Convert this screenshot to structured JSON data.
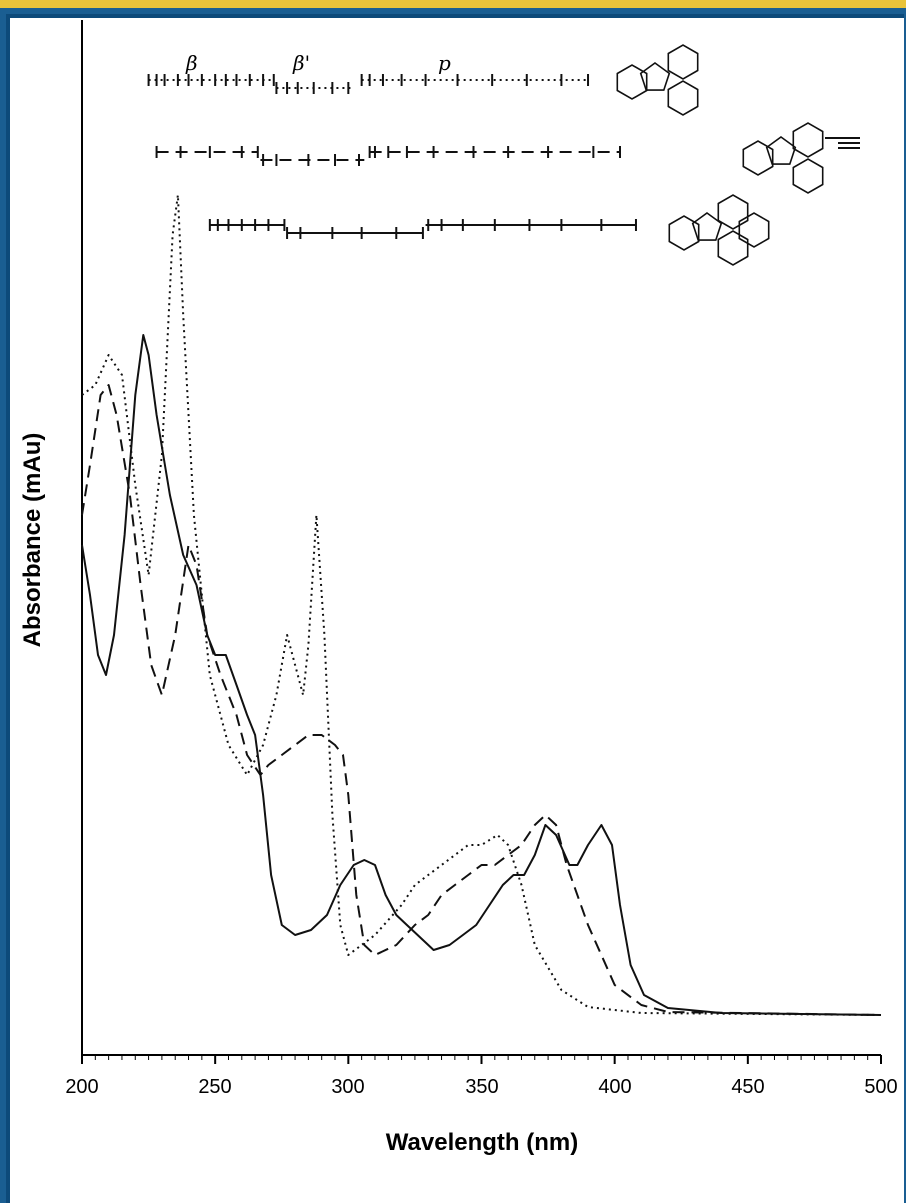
{
  "chart_data": {
    "type": "line",
    "title": "",
    "xlabel": "Wavelength (nm)",
    "ylabel": "Absorbance (mAu)",
    "xlim": [
      200,
      500
    ],
    "x_ticks": [
      "200",
      "250",
      "300",
      "350",
      "400",
      "450",
      "500"
    ],
    "band_labels": [
      "β",
      "β'",
      "p"
    ],
    "series": [
      {
        "style": "dotted",
        "points": [
          [
            200,
            0.62
          ],
          [
            205,
            0.63
          ],
          [
            210,
            0.66
          ],
          [
            215,
            0.64
          ],
          [
            220,
            0.53
          ],
          [
            225,
            0.44
          ],
          [
            230,
            0.56
          ],
          [
            234,
            0.78
          ],
          [
            236,
            0.82
          ],
          [
            238,
            0.7
          ],
          [
            242,
            0.5
          ],
          [
            248,
            0.34
          ],
          [
            255,
            0.27
          ],
          [
            262,
            0.24
          ],
          [
            268,
            0.27
          ],
          [
            273,
            0.32
          ],
          [
            277,
            0.38
          ],
          [
            280,
            0.35
          ],
          [
            283,
            0.32
          ],
          [
            285,
            0.37
          ],
          [
            288,
            0.5
          ],
          [
            291,
            0.38
          ],
          [
            294,
            0.2
          ],
          [
            297,
            0.09
          ],
          [
            300,
            0.06
          ],
          [
            305,
            0.07
          ],
          [
            310,
            0.08
          ],
          [
            320,
            0.11
          ],
          [
            325,
            0.13
          ],
          [
            330,
            0.14
          ],
          [
            335,
            0.15
          ],
          [
            340,
            0.16
          ],
          [
            345,
            0.17
          ],
          [
            350,
            0.17
          ],
          [
            356,
            0.18
          ],
          [
            360,
            0.17
          ],
          [
            365,
            0.13
          ],
          [
            370,
            0.07
          ],
          [
            380,
            0.025
          ],
          [
            390,
            0.008
          ],
          [
            410,
            0.002
          ],
          [
            500,
            0.0
          ]
        ]
      },
      {
        "style": "dashed",
        "points": [
          [
            200,
            0.5
          ],
          [
            203,
            0.55
          ],
          [
            207,
            0.62
          ],
          [
            210,
            0.63
          ],
          [
            213,
            0.6
          ],
          [
            218,
            0.52
          ],
          [
            222,
            0.43
          ],
          [
            226,
            0.35
          ],
          [
            230,
            0.32
          ],
          [
            235,
            0.38
          ],
          [
            240,
            0.47
          ],
          [
            243,
            0.45
          ],
          [
            247,
            0.38
          ],
          [
            252,
            0.34
          ],
          [
            258,
            0.3
          ],
          [
            262,
            0.26
          ],
          [
            267,
            0.24
          ],
          [
            270,
            0.25
          ],
          [
            275,
            0.26
          ],
          [
            280,
            0.27
          ],
          [
            285,
            0.28
          ],
          [
            290,
            0.28
          ],
          [
            295,
            0.27
          ],
          [
            298,
            0.26
          ],
          [
            300,
            0.22
          ],
          [
            303,
            0.12
          ],
          [
            306,
            0.07
          ],
          [
            310,
            0.06
          ],
          [
            318,
            0.07
          ],
          [
            325,
            0.09
          ],
          [
            330,
            0.1
          ],
          [
            335,
            0.12
          ],
          [
            340,
            0.13
          ],
          [
            345,
            0.14
          ],
          [
            350,
            0.15
          ],
          [
            355,
            0.15
          ],
          [
            360,
            0.16
          ],
          [
            365,
            0.17
          ],
          [
            370,
            0.19
          ],
          [
            374,
            0.2
          ],
          [
            378,
            0.19
          ],
          [
            382,
            0.15
          ],
          [
            390,
            0.09
          ],
          [
            400,
            0.03
          ],
          [
            410,
            0.01
          ],
          [
            420,
            0.003
          ],
          [
            500,
            0.0
          ]
        ]
      },
      {
        "style": "solid",
        "points": [
          [
            200,
            0.47
          ],
          [
            203,
            0.42
          ],
          [
            206,
            0.36
          ],
          [
            209,
            0.34
          ],
          [
            212,
            0.38
          ],
          [
            216,
            0.48
          ],
          [
            220,
            0.62
          ],
          [
            223,
            0.68
          ],
          [
            225,
            0.66
          ],
          [
            228,
            0.6
          ],
          [
            233,
            0.52
          ],
          [
            238,
            0.46
          ],
          [
            243,
            0.43
          ],
          [
            247,
            0.38
          ],
          [
            250,
            0.36
          ],
          [
            254,
            0.36
          ],
          [
            258,
            0.33
          ],
          [
            262,
            0.3
          ],
          [
            265,
            0.28
          ],
          [
            268,
            0.22
          ],
          [
            271,
            0.14
          ],
          [
            275,
            0.09
          ],
          [
            280,
            0.08
          ],
          [
            286,
            0.085
          ],
          [
            292,
            0.1
          ],
          [
            297,
            0.13
          ],
          [
            302,
            0.15
          ],
          [
            306,
            0.155
          ],
          [
            310,
            0.15
          ],
          [
            314,
            0.12
          ],
          [
            318,
            0.1
          ],
          [
            322,
            0.09
          ],
          [
            326,
            0.08
          ],
          [
            332,
            0.065
          ],
          [
            338,
            0.07
          ],
          [
            343,
            0.08
          ],
          [
            348,
            0.09
          ],
          [
            353,
            0.11
          ],
          [
            358,
            0.13
          ],
          [
            362,
            0.14
          ],
          [
            366,
            0.14
          ],
          [
            370,
            0.16
          ],
          [
            374,
            0.19
          ],
          [
            378,
            0.18
          ],
          [
            383,
            0.15
          ],
          [
            386,
            0.15
          ],
          [
            390,
            0.17
          ],
          [
            395,
            0.19
          ],
          [
            399,
            0.17
          ],
          [
            402,
            0.11
          ],
          [
            406,
            0.05
          ],
          [
            411,
            0.02
          ],
          [
            420,
            0.007
          ],
          [
            440,
            0.002
          ],
          [
            500,
            0.0
          ]
        ]
      }
    ],
    "band_bars": [
      {
        "style": "dotted",
        "segments": [
          [
            225,
            272
          ],
          [
            273,
            302
          ],
          [
            305,
            390
          ]
        ],
        "ticks": [
          [
            225,
            228,
            231,
            236,
            240,
            245,
            250,
            254,
            258,
            263,
            268,
            272
          ],
          [
            273,
            277,
            281,
            287,
            294,
            300
          ],
          [
            305,
            308,
            313,
            320,
            329,
            341,
            354,
            367,
            380,
            390
          ]
        ]
      },
      {
        "style": "dashed",
        "segments": [
          [
            228,
            266
          ],
          [
            267,
            306
          ],
          [
            308,
            402
          ]
        ],
        "ticks": [
          [
            228,
            237,
            248,
            260,
            266
          ],
          [
            268,
            273,
            285,
            295,
            304
          ],
          [
            308,
            310,
            315,
            322,
            332,
            347,
            360,
            375,
            392,
            402
          ]
        ]
      },
      {
        "style": "solid",
        "segments": [
          [
            248,
            276
          ],
          [
            277,
            328
          ],
          [
            329,
            408
          ]
        ],
        "ticks": [
          [
            248,
            251,
            255,
            260,
            265,
            270,
            276
          ],
          [
            277,
            282,
            294,
            305,
            318,
            328
          ],
          [
            330,
            335,
            343,
            355,
            368,
            380,
            395,
            408
          ]
        ]
      }
    ]
  }
}
